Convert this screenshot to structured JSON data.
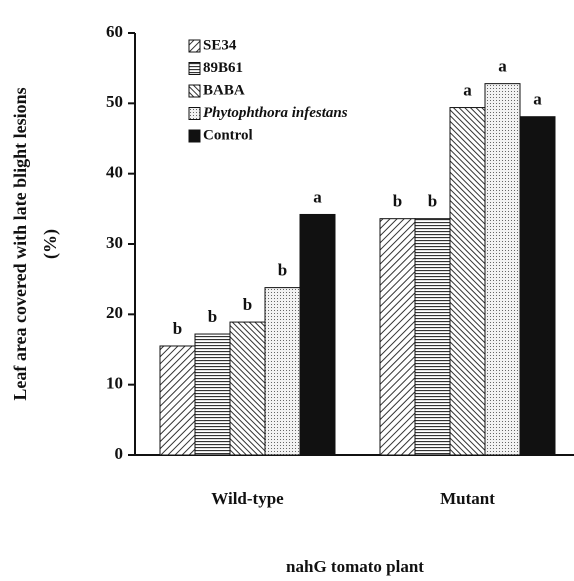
{
  "chart_data": {
    "type": "bar",
    "ylabel": [
      "Leaf area covered with late blight lesions",
      "(%)"
    ],
    "xlabel": "nahG tomato plant",
    "categories": [
      "Wild-type",
      "Mutant"
    ],
    "ylim": [
      0,
      60
    ],
    "yticks": [
      0,
      10,
      20,
      30,
      40,
      50,
      60
    ],
    "series": [
      {
        "name": "SE34",
        "color": "#333333",
        "pattern": "diag-right",
        "values": [
          15.5,
          33.6
        ],
        "labels": [
          "b",
          "b"
        ]
      },
      {
        "name": "89B61",
        "color": "#333333",
        "pattern": "horizontal",
        "values": [
          17.2,
          33.6
        ],
        "labels": [
          "b",
          "b"
        ]
      },
      {
        "name": "BABA",
        "color": "#333333",
        "pattern": "diag-left",
        "values": [
          18.9,
          49.4
        ],
        "labels": [
          "b",
          "a"
        ]
      },
      {
        "name": "Phytophthora infestans",
        "italic": true,
        "color": "#666666",
        "pattern": "dots",
        "values": [
          23.8,
          52.8
        ],
        "labels": [
          "b",
          "a"
        ]
      },
      {
        "name": "Control",
        "color": "#111111",
        "pattern": "solid",
        "values": [
          34.2,
          48.1
        ],
        "labels": [
          "a",
          "a"
        ]
      }
    ]
  }
}
